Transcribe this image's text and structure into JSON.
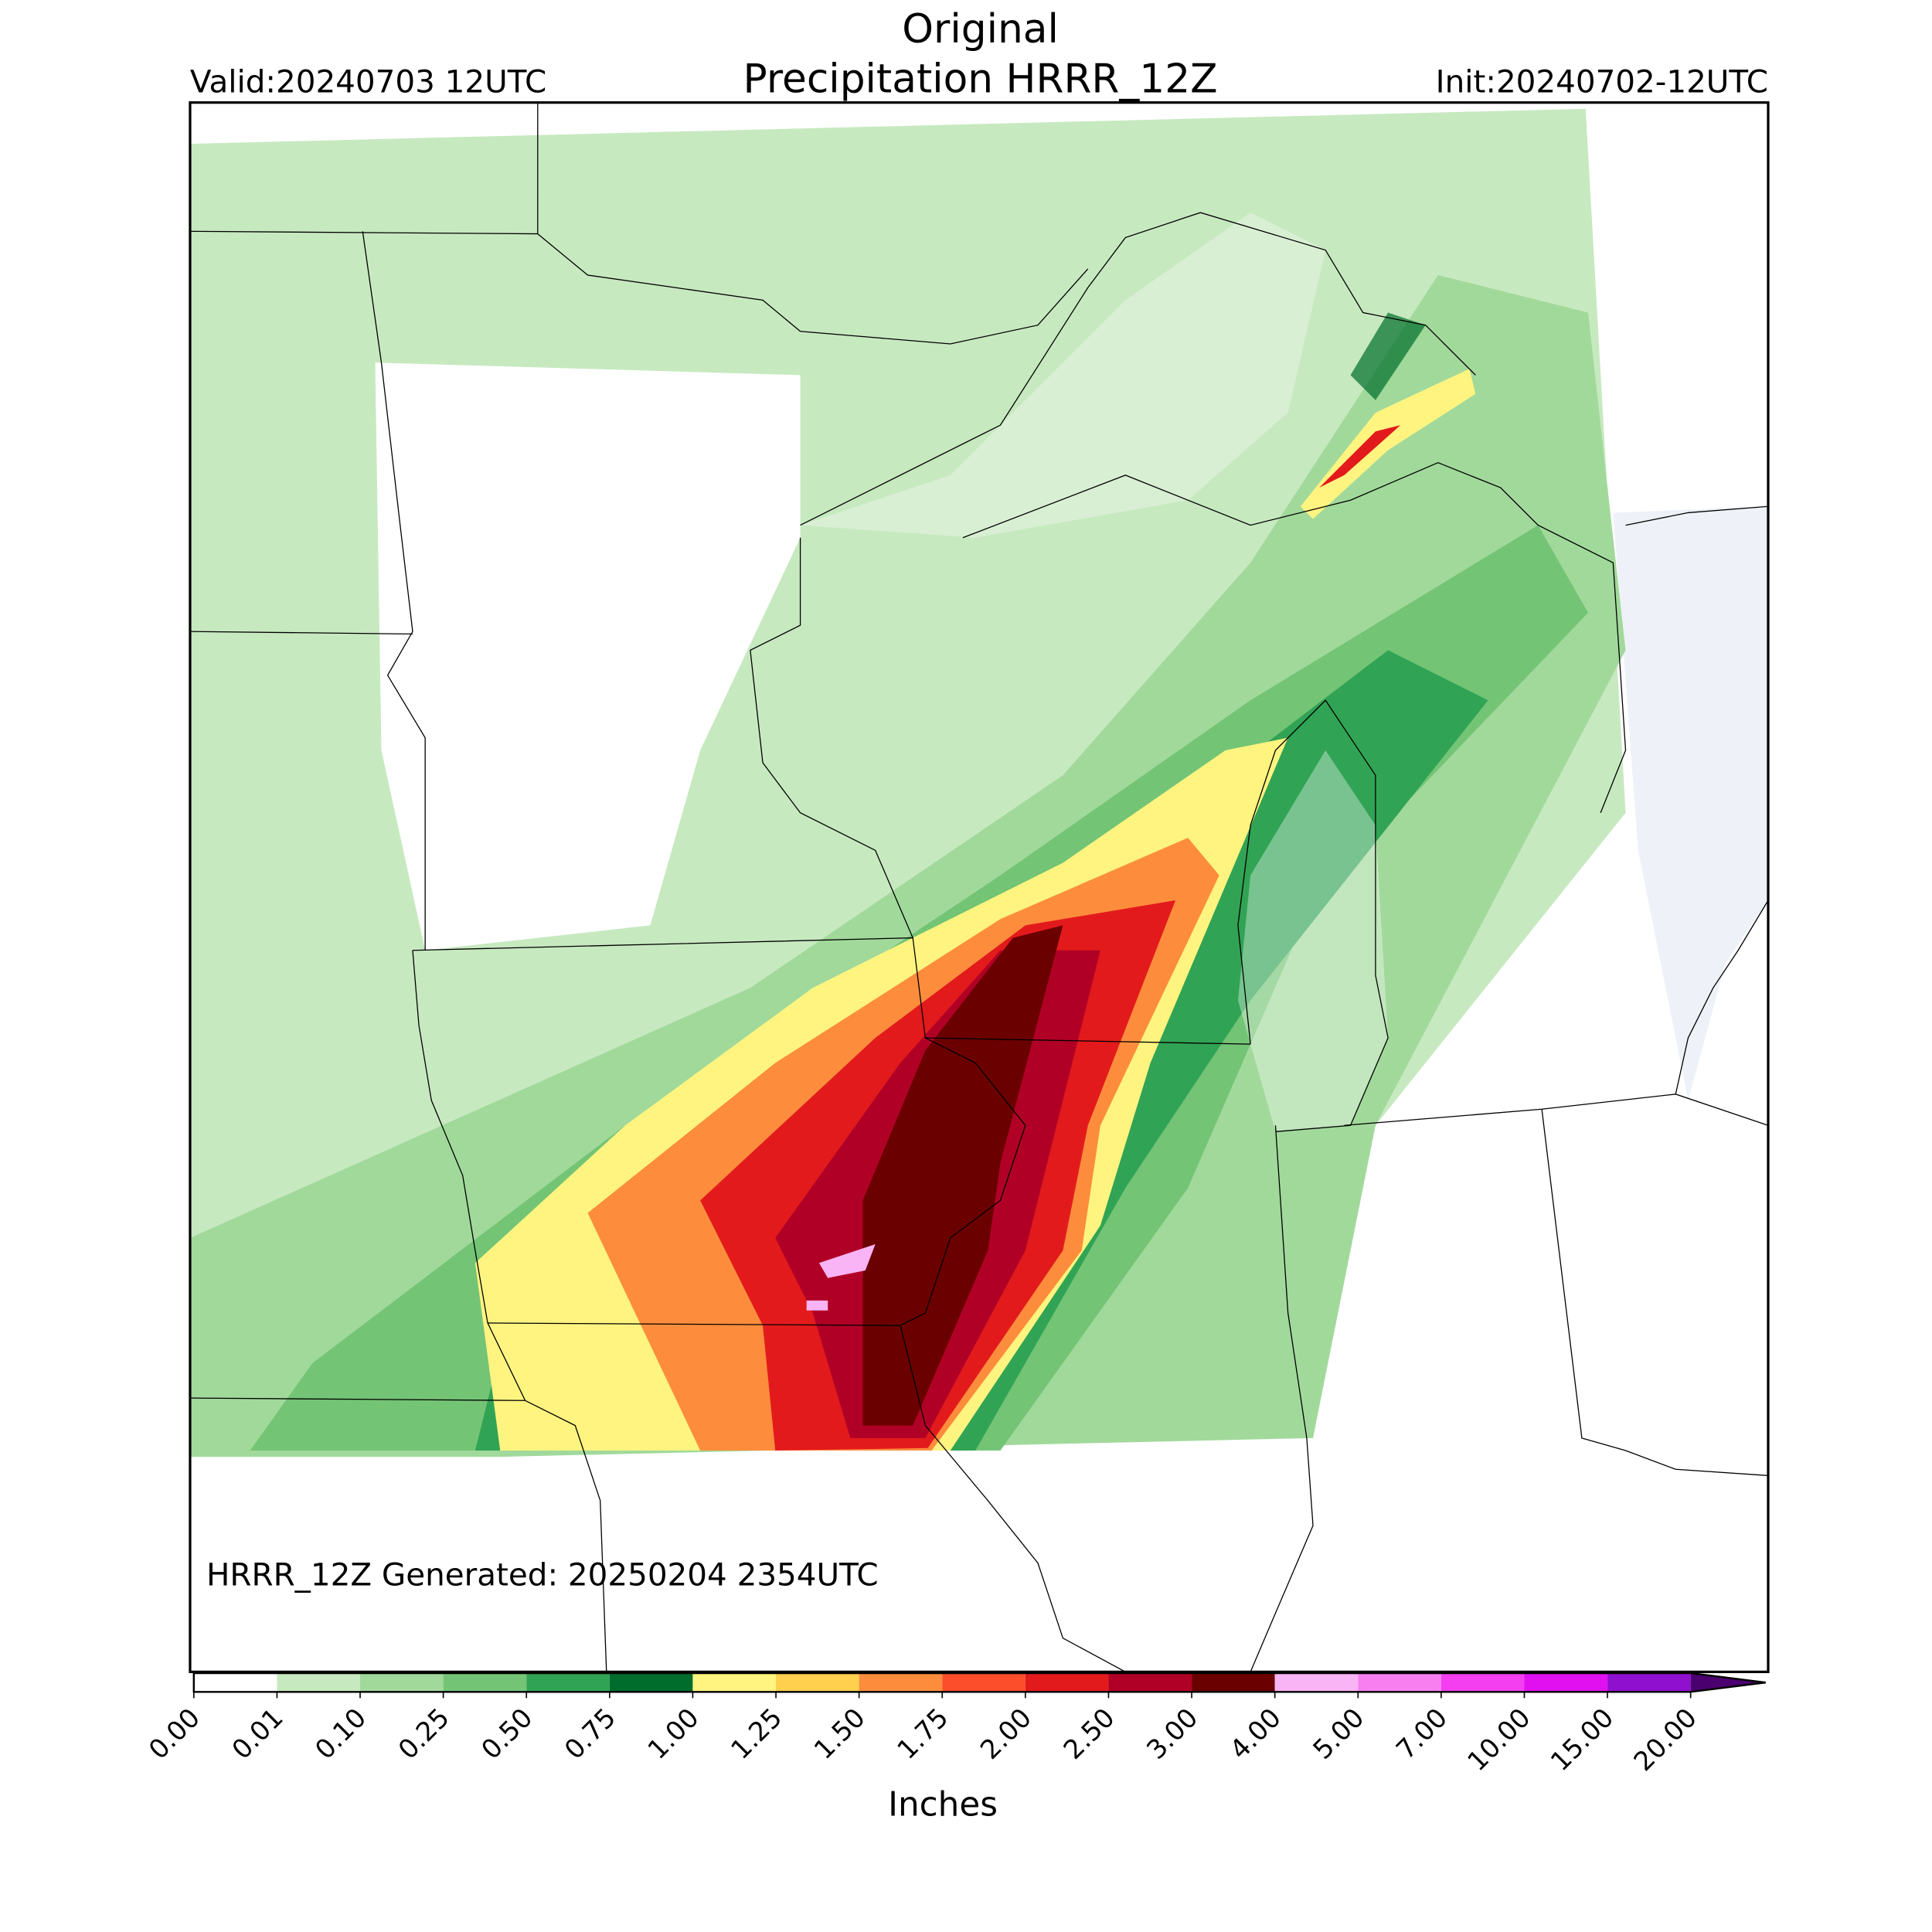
{
  "header": {
    "title": "Original",
    "subtitle": "Precipitation HRRR_12Z",
    "valid": "Valid:20240703 12UTC",
    "init": "Init:20240702-12UTC"
  },
  "footer_note": "HRRR_12Z Generated: 20250204 2354UTC",
  "colorbar": {
    "label": "Inches",
    "levels": [
      {
        "value": 0,
        "label": "0.00"
      },
      {
        "value": 0.01,
        "label": "0.01"
      },
      {
        "value": 0.1,
        "label": "0.10"
      },
      {
        "value": 0.25,
        "label": "0.25"
      },
      {
        "value": 0.5,
        "label": "0.50"
      },
      {
        "value": 0.75,
        "label": "0.75"
      },
      {
        "value": 1,
        "label": "1.00"
      },
      {
        "value": 1.25,
        "label": "1.25"
      },
      {
        "value": 1.5,
        "label": "1.50"
      },
      {
        "value": 1.75,
        "label": "1.75"
      },
      {
        "value": 2,
        "label": "2.00"
      },
      {
        "value": 2.5,
        "label": "2.50"
      },
      {
        "value": 3,
        "label": "3.00"
      },
      {
        "value": 4,
        "label": "4.00"
      },
      {
        "value": 5,
        "label": "5.00"
      },
      {
        "value": 7,
        "label": "7.00"
      },
      {
        "value": 10,
        "label": "10.00"
      },
      {
        "value": 15,
        "label": "15.00"
      },
      {
        "value": 20,
        "label": "20.00"
      }
    ],
    "colors": [
      "#ffffff",
      "#c7e9c0",
      "#a1d99b",
      "#74c476",
      "#31a354",
      "#006d2c",
      "#fff480",
      "#fed04e",
      "#fd8d3c",
      "#fc4e2a",
      "#e31a1c",
      "#b10026",
      "#6b0000",
      "#f8b4f4",
      "#f77ff0",
      "#f33ff0",
      "#e010f0",
      "#9010d0"
    ],
    "extend_color": "#4b0070"
  }
}
